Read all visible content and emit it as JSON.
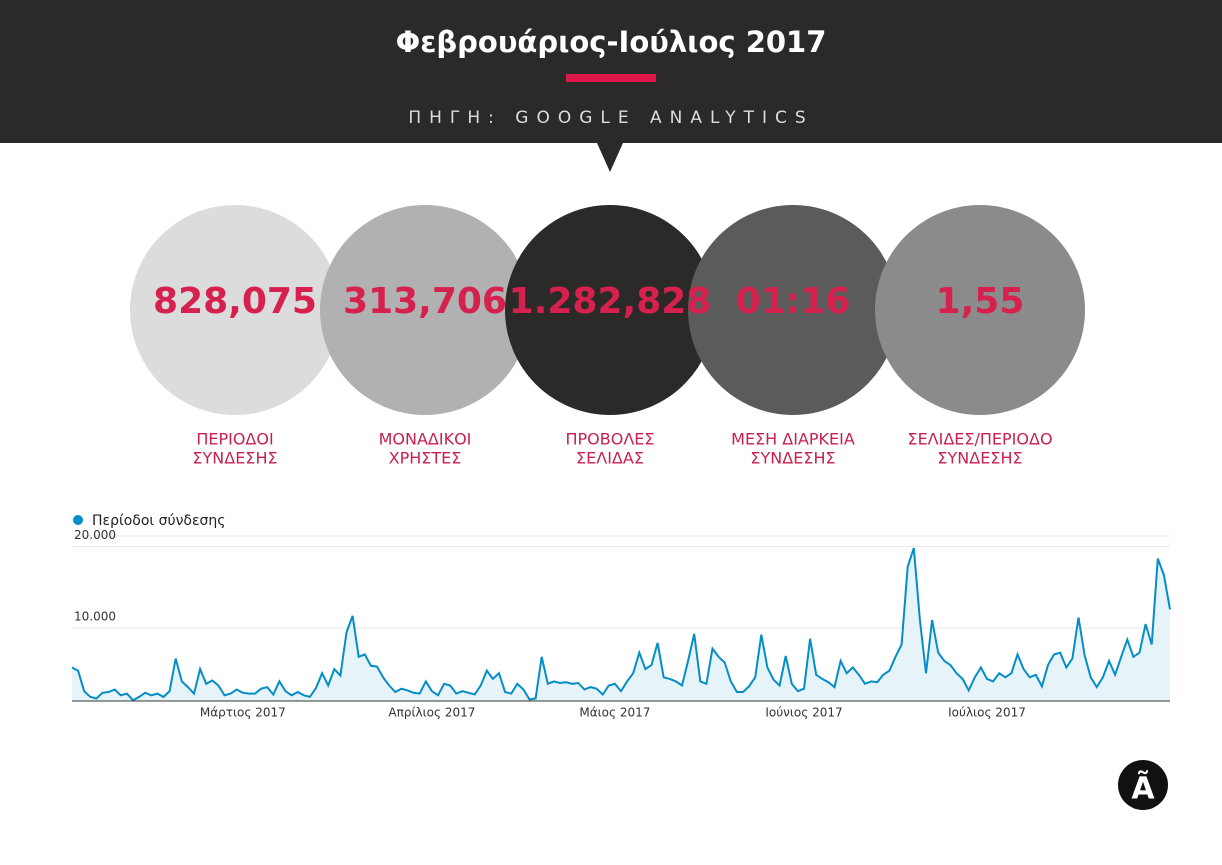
{
  "header": {
    "title": "Φεβρουάριος-Ιούλιος 2017",
    "source": "ΠΗΓΗ: GOOGLE ANALYTICS"
  },
  "kpis": [
    {
      "value": "828,075",
      "label": [
        "ΠΕΡΙΟΔΟΙ",
        "ΣΥΝΔΕΣΗΣ"
      ]
    },
    {
      "value": "313,706",
      "label": [
        "ΜΟΝΑΔΙΚΟΙ",
        "ΧΡΗΣΤΕΣ"
      ]
    },
    {
      "value": "1.282,828",
      "label": [
        "ΠΡΟΒΟΛΕΣ",
        "ΣΕΛΙΔΑΣ"
      ]
    },
    {
      "value": "01:16",
      "label": [
        "ΜΕΣΗ ΔΙΑΡΚΕΙΑ",
        "ΣΥΝΔΕΣΗΣ"
      ]
    },
    {
      "value": "1,55",
      "label": [
        "ΣΕΛΙΔΕΣ/ΠΕΡΙΟΔΟ",
        "ΣΥΝΔΕΣΗΣ"
      ]
    }
  ],
  "logo": "Ã",
  "chart_data": {
    "type": "line",
    "categories": [
      null,
      null,
      null,
      null,
      null,
      null,
      null,
      null,
      null,
      null,
      null,
      null,
      null,
      null,
      null,
      null,
      null,
      null,
      null,
      null,
      null,
      null,
      null,
      null,
      null,
      null,
      null,
      null,
      "Μάρτιος 2017",
      null,
      null,
      null,
      null,
      null,
      null,
      null,
      null,
      null,
      null,
      null,
      null,
      null,
      null,
      null,
      null,
      null,
      null,
      null,
      null,
      null,
      null,
      null,
      null,
      null,
      null,
      null,
      null,
      null,
      null,
      "Απρίλιος 2017",
      null,
      null,
      null,
      null,
      null,
      null,
      null,
      null,
      null,
      null,
      null,
      null,
      null,
      null,
      null,
      null,
      null,
      null,
      null,
      null,
      null,
      null,
      null,
      null,
      null,
      null,
      null,
      null,
      null,
      "Μάιος 2017",
      null,
      null,
      null,
      null,
      null,
      null,
      null,
      null,
      null,
      null,
      null,
      null,
      null,
      null,
      null,
      null,
      null,
      null,
      null,
      null,
      null,
      null,
      null,
      null,
      null,
      null,
      null,
      null,
      null,
      null,
      "Ιούνιος 2017",
      null,
      null,
      null,
      null,
      null,
      null,
      null,
      null,
      null,
      null,
      null,
      null,
      null,
      null,
      null,
      null,
      null,
      null,
      null,
      null,
      null,
      null,
      null,
      null,
      null,
      null,
      null,
      null,
      null,
      "Ιούλιος 2017",
      null,
      null,
      null,
      null,
      null,
      null,
      null,
      null,
      null,
      null,
      null,
      null,
      null,
      null,
      null,
      null,
      null,
      null,
      null,
      null,
      null,
      null,
      null,
      null,
      null,
      null,
      null,
      null,
      null,
      null
    ],
    "series": [
      {
        "name": "Περίοδοι σύνδεσης",
        "color": "#058dc7",
        "values": [
          5200,
          4800,
          2300,
          1600,
          1400,
          2100,
          2200,
          2500,
          1800,
          2000,
          1200,
          1600,
          2100,
          1800,
          2000,
          1600,
          2300,
          6300,
          3500,
          2800,
          2000,
          5000,
          3200,
          3600,
          3000,
          1800,
          2000,
          2500,
          2100,
          2000,
          2000,
          2600,
          2800,
          1900,
          3500,
          2300,
          1800,
          2200,
          1800,
          1600,
          2700,
          4500,
          3000,
          5000,
          4200,
          9500,
          11500,
          6500,
          6800,
          5400,
          5300,
          4000,
          3000,
          2200,
          2600,
          2400,
          2100,
          2000,
          3500,
          2300,
          1800,
          3200,
          3000,
          2000,
          2300,
          2100,
          1900,
          3000,
          4800,
          3800,
          4500,
          2200,
          2000,
          3200,
          2500,
          1300,
          1400,
          6500,
          3200,
          3500,
          3300,
          3400,
          3200,
          3300,
          2500,
          2800,
          2600,
          1900,
          3000,
          3200,
          2300,
          3500,
          4500,
          7000,
          5000,
          5500,
          8200,
          4000,
          3800,
          3500,
          3000,
          6000,
          9300,
          3500,
          3200,
          7500,
          6500,
          5800,
          3500,
          2200,
          2200,
          2900,
          4000,
          9200,
          5200,
          3700,
          3000,
          6600,
          3200,
          2300,
          2600,
          8700,
          4300,
          3800,
          3400,
          2800,
          6000,
          4500,
          5200,
          4300,
          3200,
          3500,
          3400,
          4300,
          4800,
          6500,
          8000,
          17500,
          19800,
          11000,
          4500,
          11000,
          7000,
          6000,
          5500,
          4500,
          3800,
          2400,
          4000,
          5200,
          3800,
          3500,
          4500,
          4000,
          4500,
          6800,
          5000,
          4000,
          4300,
          2900,
          5500,
          6800,
          7000,
          5200,
          6300,
          11300,
          6700,
          4000,
          2800,
          4000,
          6000,
          4300,
          6500,
          8600,
          6500,
          7000,
          10500,
          8000,
          18500,
          16500,
          12300
        ]
      }
    ],
    "ylim": [
      1100,
      22000
    ],
    "yticks": [
      {
        "value": 10000,
        "label": "10.000"
      },
      {
        "value": 20000,
        "label": "20.000"
      }
    ],
    "grid": true
  }
}
